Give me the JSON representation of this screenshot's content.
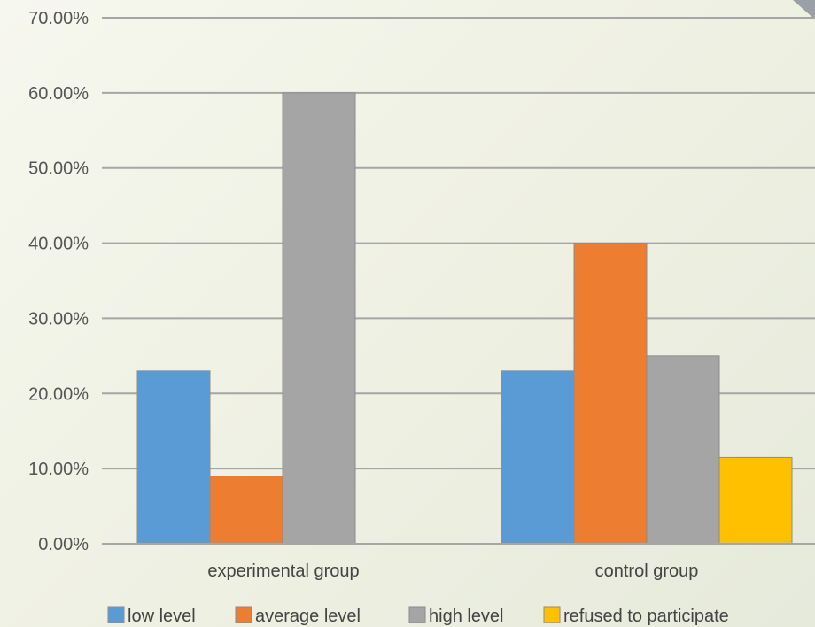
{
  "chart_data": {
    "type": "bar",
    "title": "",
    "xlabel": "",
    "ylabel": "",
    "categories": [
      "experimental group",
      "control group"
    ],
    "series": [
      {
        "name": "low level",
        "color": "#5b9bd5",
        "values": [
          23,
          23
        ]
      },
      {
        "name": "average level",
        "color": "#ed7d31",
        "values": [
          9,
          40
        ]
      },
      {
        "name": "high level",
        "color": "#a5a5a5",
        "values": [
          60,
          25
        ]
      },
      {
        "name": "refused to participate",
        "color": "#ffc000",
        "values": [
          null,
          11.5
        ]
      }
    ],
    "ylim": [
      0,
      70
    ],
    "yticks": [
      0,
      10,
      20,
      30,
      40,
      50,
      60,
      70
    ],
    "ytick_labels": [
      "0.00%",
      "10.00%",
      "20.00%",
      "30.00%",
      "40.00%",
      "50.00%",
      "60.00%",
      "70.00%"
    ],
    "grid": true,
    "legend_position": "bottom"
  }
}
